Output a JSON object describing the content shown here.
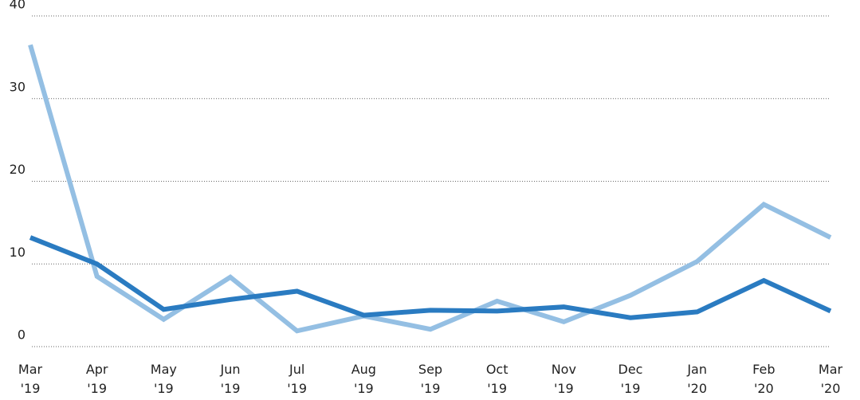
{
  "chart_data": {
    "type": "line",
    "categories": [
      "Mar '19",
      "Apr '19",
      "May '19",
      "Jun '19",
      "Jul '19",
      "Aug '19",
      "Sep '19",
      "Oct '19",
      "Nov '19",
      "Dec '19",
      "Jan '20",
      "Feb '20",
      "Mar '20"
    ],
    "series": [
      {
        "color": "#94bfe3",
        "values": [
          36.5,
          8.5,
          3.3,
          8.4,
          1.9,
          3.7,
          2.1,
          5.5,
          3.0,
          6.2,
          10.3,
          17.2,
          13.2
        ]
      },
      {
        "color": "#2a7bc1",
        "values": [
          13.2,
          10.0,
          4.5,
          5.7,
          6.7,
          3.8,
          4.4,
          4.3,
          4.8,
          3.5,
          4.2,
          8.0,
          4.3
        ]
      }
    ],
    "ylim": [
      0,
      40
    ],
    "yticks": [
      0,
      10,
      20,
      30,
      40
    ],
    "grid": true
  }
}
